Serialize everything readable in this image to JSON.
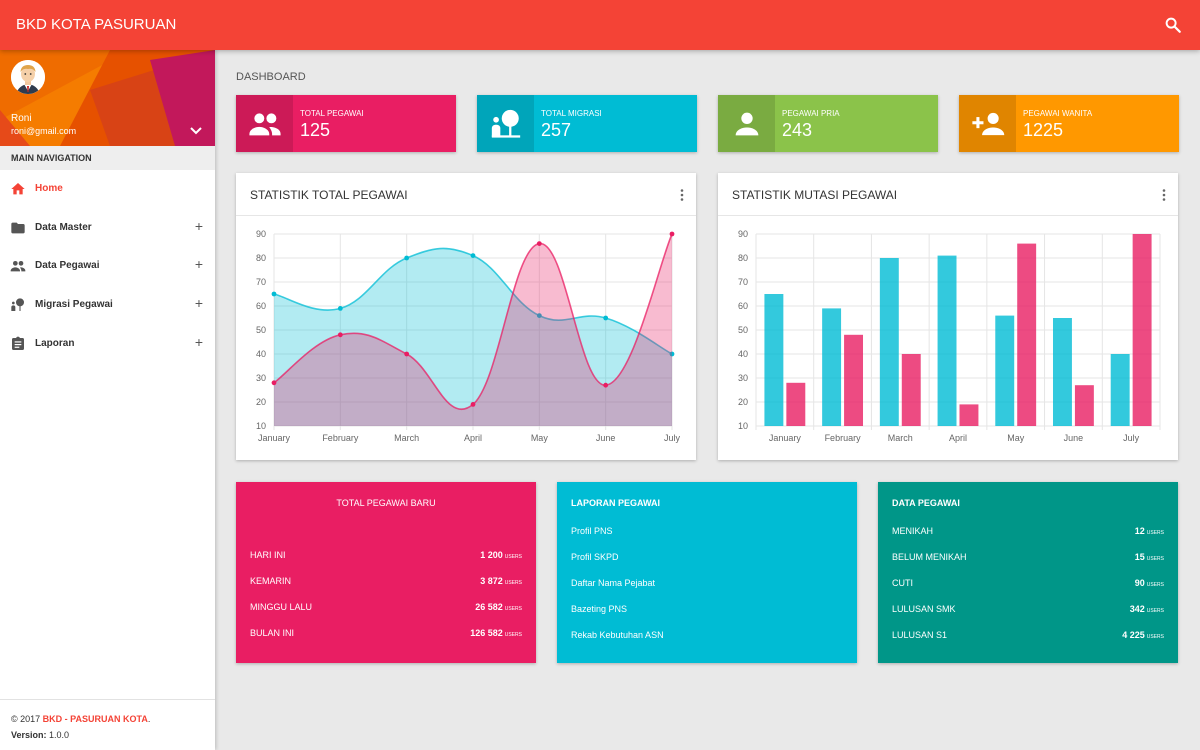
{
  "app": {
    "title": "BKD KOTA PASURUAN"
  },
  "user": {
    "name": "Roni",
    "email": "roni@gmail.com"
  },
  "sidebar": {
    "header": "MAIN NAVIGATION",
    "items": [
      {
        "label": "Home",
        "icon": "home-icon",
        "active": true
      },
      {
        "label": "Data Master",
        "icon": "folder-icon"
      },
      {
        "label": "Data Pegawai",
        "icon": "people-icon"
      },
      {
        "label": "Migrasi Pegawai",
        "icon": "nature-people-icon"
      },
      {
        "label": "Laporan",
        "icon": "clipboard-icon"
      }
    ],
    "footer": {
      "copyright": "© 2017 ",
      "org": "BKD - PASURUAN KOTA",
      "dot": ".",
      "version_label": "Version:",
      "version": " 1.0.0"
    }
  },
  "page": {
    "title": "DASHBOARD"
  },
  "info_boxes": [
    {
      "label": "TOTAL PEGAWAI",
      "value": "125",
      "color": "#e91e63",
      "icon": "people-icon"
    },
    {
      "label": "TOTAL MIGRASI",
      "value": "257",
      "color": "#00bcd4",
      "icon": "nature-people-icon"
    },
    {
      "label": "PEGAWAI PRIA",
      "value": "243",
      "color": "#8bc34a",
      "icon": "person-icon"
    },
    {
      "label": "PEGAWAI WANITA",
      "value": "1225",
      "color": "#ff9800",
      "icon": "person-add-icon"
    }
  ],
  "cards": {
    "line_title": "STATISTIK TOTAL PEGAWAI",
    "bar_title": "STATISTIK MUTASI PEGAWAI"
  },
  "chart_data": [
    {
      "type": "area",
      "categories": [
        "January",
        "February",
        "March",
        "April",
        "May",
        "June",
        "July"
      ],
      "series": [
        {
          "color": "#00bcd4",
          "values": [
            65,
            59,
            80,
            81,
            56,
            55,
            40
          ]
        },
        {
          "color": "#e91e63",
          "values": [
            28,
            48,
            40,
            19,
            86,
            27,
            90
          ]
        }
      ],
      "ylim": [
        10,
        90
      ],
      "yticks": [
        10,
        20,
        30,
        40,
        50,
        60,
        70,
        80,
        90
      ],
      "grid": true
    },
    {
      "type": "bar",
      "categories": [
        "January",
        "February",
        "March",
        "April",
        "May",
        "June",
        "July"
      ],
      "series": [
        {
          "color": "#00bcd4",
          "values": [
            65,
            59,
            80,
            81,
            56,
            55,
            40
          ]
        },
        {
          "color": "#e91e63",
          "values": [
            28,
            48,
            40,
            19,
            86,
            27,
            90
          ]
        }
      ],
      "ylim": [
        10,
        90
      ],
      "yticks": [
        10,
        20,
        30,
        40,
        50,
        60,
        70,
        80,
        90
      ],
      "grid": true
    }
  ],
  "new_staff": {
    "title": "TOTAL PEGAWAI BARU",
    "unit": "USERS",
    "rows": [
      {
        "label": "HARI INI",
        "value": "1 200"
      },
      {
        "label": "KEMARIN",
        "value": "3 872"
      },
      {
        "label": "MINGGU LALU",
        "value": "26 582"
      },
      {
        "label": "BULAN INI",
        "value": "126 582"
      }
    ]
  },
  "reports": {
    "title": "LAPORAN PEGAWAI",
    "links": [
      "Profil PNS",
      "Profil SKPD",
      "Daftar Nama Pejabat",
      "Bazeting PNS",
      "Rekab Kebutuhan ASN"
    ]
  },
  "staff_data": {
    "title": "DATA PEGAWAI",
    "unit": "USERS",
    "rows": [
      {
        "label": "MENIKAH",
        "value": "12"
      },
      {
        "label": "BELUM MENIKAH",
        "value": "15"
      },
      {
        "label": "CUTI",
        "value": "90"
      },
      {
        "label": "LULUSAN SMK",
        "value": "342"
      },
      {
        "label": "LULUSAN S1",
        "value": "4 225"
      }
    ]
  }
}
